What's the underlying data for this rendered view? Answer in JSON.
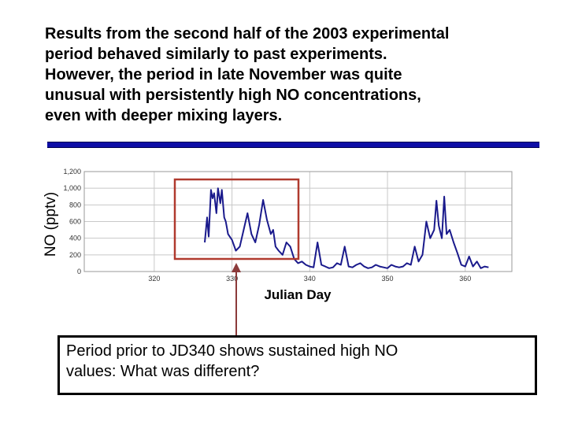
{
  "headline": {
    "lines": [
      "Results from the second half of the 2003 experimental",
      "period behaved similarly to past experiments.",
      "However, the period in late November was quite",
      "unusual with persistently high NO concentrations,",
      "even with deeper mixing layers."
    ]
  },
  "colors": {
    "rule": "#0d0da6",
    "series": "#1a1a8c",
    "highlight": "#b03a2e",
    "arrow": "#8b3a3a",
    "grid": "#c8c8c8"
  },
  "chart_data": {
    "type": "line",
    "xlabel": "Julian Day",
    "ylabel": "NO (pptv)",
    "xlim": [
      311,
      366
    ],
    "ylim": [
      0,
      1200
    ],
    "xticks": [
      320,
      330,
      340,
      350,
      360
    ],
    "yticks": [
      "0",
      "200",
      "400",
      "600",
      "800",
      "1,000",
      "1,200"
    ],
    "grid": true,
    "series": [
      {
        "x": [
          326.5,
          326.8,
          327.0,
          327.3,
          327.5,
          327.7,
          328.0,
          328.2,
          328.5,
          328.7,
          329.0,
          329.2,
          329.5,
          330.0,
          330.5,
          331.0,
          331.5,
          332.0,
          332.5,
          333.0,
          333.5,
          334.0,
          334.5,
          335.0,
          335.3,
          335.6,
          336.0,
          336.5,
          337.0,
          337.5,
          338.0,
          338.5,
          339.0,
          339.5,
          340.0,
          340.5,
          341.0,
          341.5,
          342.0,
          342.5,
          343.0,
          343.5,
          344.0,
          344.5,
          345.0,
          345.5,
          346.0,
          346.5,
          347.0,
          347.5,
          348.0,
          348.5,
          349.0,
          349.5,
          350.0,
          350.5,
          351.0,
          351.5,
          352.0,
          352.5,
          353.0,
          353.5,
          354.0,
          354.5,
          355.0,
          355.5,
          356.0,
          356.3,
          356.6,
          357.0,
          357.3,
          357.6,
          358.0,
          358.5,
          359.0,
          359.5,
          360.0,
          360.5,
          361.0,
          361.5,
          362.0,
          362.5,
          363.0
        ],
        "values": [
          350,
          650,
          420,
          980,
          880,
          940,
          700,
          1000,
          820,
          980,
          650,
          600,
          450,
          380,
          250,
          300,
          500,
          700,
          450,
          350,
          560,
          860,
          620,
          450,
          500,
          300,
          250,
          200,
          350,
          300,
          150,
          100,
          120,
          80,
          60,
          50,
          350,
          80,
          60,
          40,
          50,
          100,
          80,
          300,
          60,
          50,
          80,
          100,
          60,
          40,
          50,
          80,
          60,
          50,
          40,
          80,
          60,
          50,
          60,
          100,
          80,
          300,
          120,
          200,
          600,
          400,
          500,
          850,
          550,
          400,
          900,
          450,
          500,
          350,
          220,
          80,
          60,
          180,
          60,
          120,
          40,
          60,
          50
        ]
      }
    ]
  },
  "callout": {
    "lines": [
      "Period prior to JD340 shows sustained high NO",
      "values: What was different?"
    ]
  }
}
